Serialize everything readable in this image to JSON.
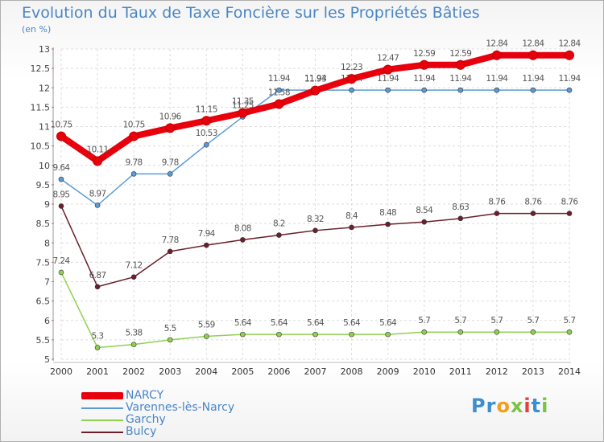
{
  "chart_title": "Evolution du Taux de Taxe Foncière sur les Propriétés Bâties",
  "unit_label": "(en %)",
  "logo_text": "Proxiti",
  "logo_letters": [
    {
      "ch": "P",
      "color": "#3b8fd0"
    },
    {
      "ch": "r",
      "color": "#3b8fd0"
    },
    {
      "ch": "o",
      "color": "#f0a020"
    },
    {
      "ch": "x",
      "color": "#7cc243"
    },
    {
      "ch": "i",
      "color": "#e04040"
    },
    {
      "ch": "t",
      "color": "#3b8fd0"
    },
    {
      "ch": "i",
      "color": "#7cc243"
    }
  ],
  "chart_data": {
    "type": "line",
    "title": "Evolution du Taux de Taxe Foncière sur les Propriétés Bâties",
    "ylabel": "(en %)",
    "xlabel": "",
    "ylim": [
      5,
      13
    ],
    "y_ticks": [
      "5",
      "5.5",
      "6",
      "6.5",
      "7",
      "7.5",
      "8",
      "8.5",
      "9",
      "9.5",
      "10",
      "10.5",
      "11",
      "11.5",
      "12",
      "12.5",
      "13"
    ],
    "x": [
      "2000",
      "2001",
      "2002",
      "2003",
      "2004",
      "2005",
      "2006",
      "2007",
      "2008",
      "2009",
      "2010",
      "2011",
      "2012",
      "2013",
      "2014"
    ],
    "grid": true,
    "legend_position": "bottom-left",
    "series": [
      {
        "name": "Varennes-lès-Narcy",
        "color": "#5b9bd5",
        "values": [
          9.64,
          8.97,
          9.78,
          9.78,
          10.53,
          11.25,
          11.94,
          11.94,
          11.94,
          11.94,
          11.94,
          11.94,
          11.94,
          11.94,
          11.94
        ],
        "labels": [
          "9.64",
          "8.97",
          "9.78",
          "9.78",
          "10.53",
          "11.25",
          "11.94",
          "11.94",
          "11.94",
          "11.94",
          "11.94",
          "11.94",
          "11.94",
          "11.94",
          "11.94"
        ]
      },
      {
        "name": "Garchy",
        "color": "#8fd14f",
        "values": [
          7.24,
          5.3,
          5.38,
          5.5,
          5.59,
          5.64,
          5.64,
          5.64,
          5.64,
          5.64,
          5.7,
          5.7,
          5.7,
          5.7,
          5.7
        ],
        "labels": [
          "7.24",
          "5.3",
          "5.38",
          "5.5",
          "5.59",
          "5.64",
          "5.64",
          "5.64",
          "5.64",
          "5.64",
          "5.7",
          "5.7",
          "5.7",
          "5.7",
          "5.7"
        ]
      },
      {
        "name": "Bulcy",
        "color": "#6b1f2a",
        "values": [
          8.95,
          6.87,
          7.12,
          7.78,
          7.94,
          8.08,
          8.2,
          8.32,
          8.4,
          8.48,
          8.54,
          8.63,
          8.76,
          8.76,
          8.76
        ],
        "labels": [
          "8.95",
          "6.87",
          "7.12",
          "7.78",
          "7.94",
          "8.08",
          "8.2",
          "8.32",
          "8.4",
          "8.48",
          "8.54",
          "8.63",
          "8.76",
          "8.76",
          "8.76"
        ]
      },
      {
        "name": "NARCY",
        "color": "#e8000d",
        "values": [
          10.75,
          10.11,
          10.75,
          10.96,
          11.15,
          11.35,
          11.58,
          11.93,
          12.23,
          12.47,
          12.59,
          12.59,
          12.84,
          12.84,
          12.84
        ],
        "labels": [
          "10.75",
          "10.11",
          "10.75",
          "10.96",
          "11.15",
          "11.35",
          "11.58",
          "11.93",
          "12.23",
          "12.47",
          "12.59",
          "12.59",
          "12.84",
          "12.84",
          "12.84"
        ]
      }
    ],
    "legend": [
      "NARCY",
      "Varennes-lès-Narcy",
      "Garchy",
      "Bulcy"
    ]
  }
}
